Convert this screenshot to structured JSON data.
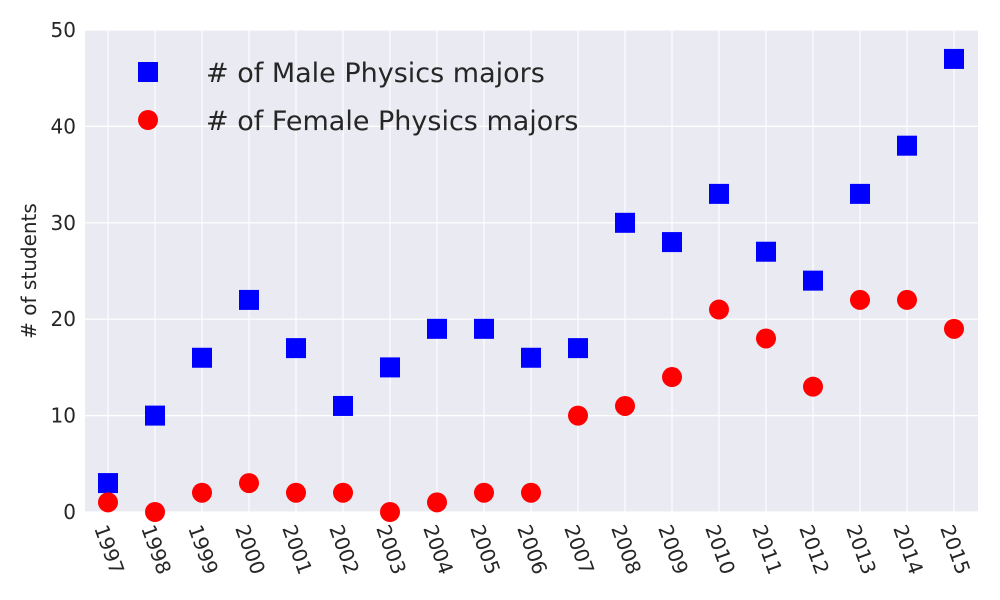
{
  "chart_data": {
    "type": "scatter",
    "title": "",
    "xlabel": "",
    "ylabel": "# of students",
    "ylim": [
      0,
      50
    ],
    "yticks": [
      0,
      10,
      20,
      30,
      40,
      50
    ],
    "x": [
      "1997",
      "1998",
      "1999",
      "2000",
      "2001",
      "2002",
      "2003",
      "2004",
      "2005",
      "2006",
      "2007",
      "2008",
      "2009",
      "2010",
      "2011",
      "2012",
      "2013",
      "2014",
      "2015"
    ],
    "grid": true,
    "legend_position": "top-left",
    "series": [
      {
        "name": "# of Male Physics majors",
        "marker": "square",
        "color": "#0000ff",
        "values": [
          3,
          10,
          16,
          22,
          17,
          11,
          15,
          19,
          19,
          16,
          17,
          30,
          28,
          33,
          27,
          24,
          33,
          38,
          47
        ]
      },
      {
        "name": "# of Female Physics majors",
        "marker": "circle",
        "color": "#ff0000",
        "values": [
          1,
          0,
          2,
          3,
          2,
          2,
          0,
          1,
          2,
          2,
          10,
          11,
          14,
          21,
          18,
          13,
          22,
          22,
          19
        ]
      }
    ],
    "colors": {
      "background": "#eaeaf2",
      "grid": "#ffffff",
      "text": "#262626"
    }
  }
}
